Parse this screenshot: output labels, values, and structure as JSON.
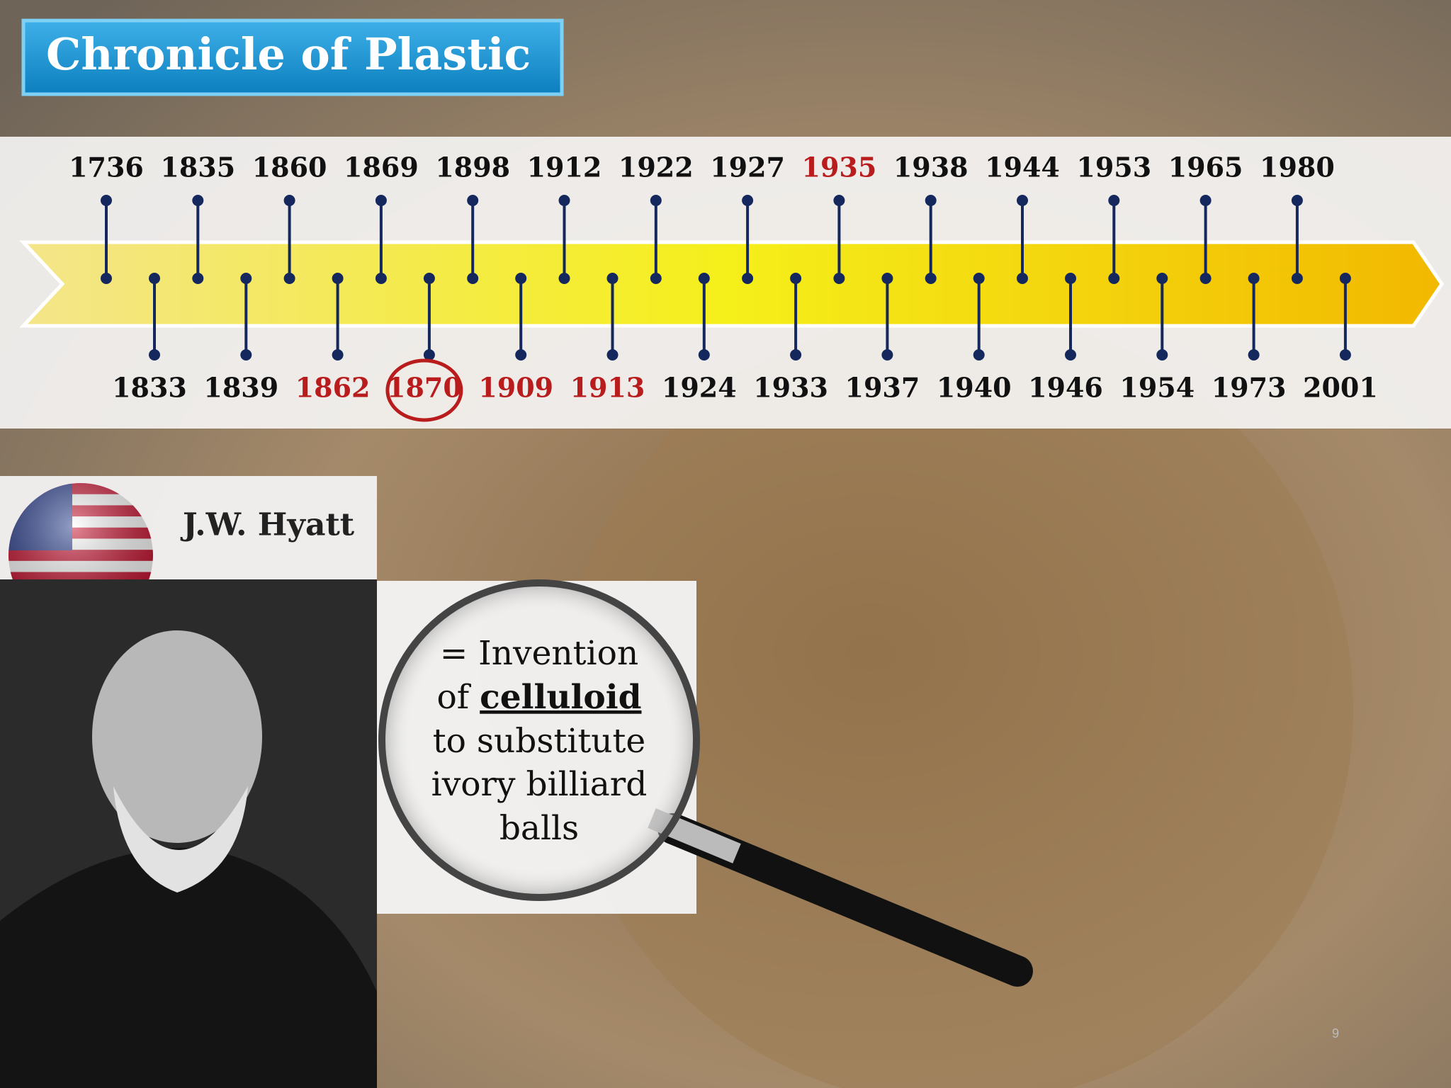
{
  "header": {
    "title": "Chronicle of Plastic"
  },
  "timeline": {
    "top": [
      {
        "label": "1736"
      },
      {
        "label": "1835"
      },
      {
        "label": "1860"
      },
      {
        "label": "1869"
      },
      {
        "label": "1898"
      },
      {
        "label": "1912"
      },
      {
        "label": "1922"
      },
      {
        "label": "1927"
      },
      {
        "label": "1935",
        "color": "#b81c1c"
      },
      {
        "label": "1938"
      },
      {
        "label": "1944"
      },
      {
        "label": "1953"
      },
      {
        "label": "1965"
      },
      {
        "label": "1980"
      }
    ],
    "bottom": [
      {
        "label": "1833"
      },
      {
        "label": "1839"
      },
      {
        "label": "1862",
        "color": "#b81c1c"
      },
      {
        "label": "1870",
        "color": "#b81c1c",
        "circled": true
      },
      {
        "label": "1909",
        "color": "#b81c1c"
      },
      {
        "label": "1913",
        "color": "#b81c1c"
      },
      {
        "label": "1924"
      },
      {
        "label": "1933"
      },
      {
        "label": "1937"
      },
      {
        "label": "1940"
      },
      {
        "label": "1946"
      },
      {
        "label": "1954"
      },
      {
        "label": "1973"
      },
      {
        "label": "2001"
      }
    ]
  },
  "person": {
    "name": "J.W. Hyatt"
  },
  "description": {
    "line1": "= Invention",
    "line2_prefix": "of",
    "line2_emphasis": "celluloid",
    "line3": "to substitute",
    "line4": "ivory billiard",
    "line5": "balls"
  },
  "page_number": "9"
}
